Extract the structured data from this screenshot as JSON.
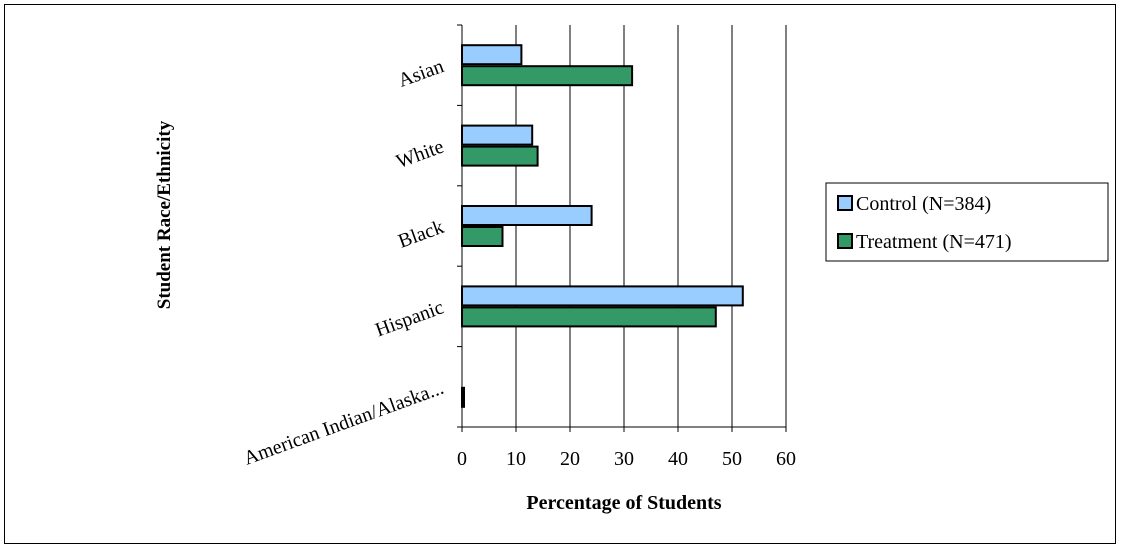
{
  "chart_data": {
    "type": "bar",
    "orientation": "horizontal",
    "categories": [
      "Asian",
      "White",
      "Black",
      "Hispanic",
      "American Indian/Alaska..."
    ],
    "series": [
      {
        "name": "Control (N=384)",
        "color": "#99ccff",
        "values": [
          11,
          13,
          24,
          52,
          0
        ]
      },
      {
        "name": "Treatment (N=471)",
        "color": "#339966",
        "values": [
          31.5,
          14,
          7.5,
          47,
          0.3
        ]
      }
    ],
    "xlabel": "Percentage of Students",
    "ylabel": "Student Race/Ethnicity",
    "xlim": [
      0,
      60
    ],
    "xticks": [
      "0",
      "10",
      "20",
      "30",
      "40",
      "50",
      "60"
    ],
    "grid": "vertical",
    "legend_position": "right"
  }
}
